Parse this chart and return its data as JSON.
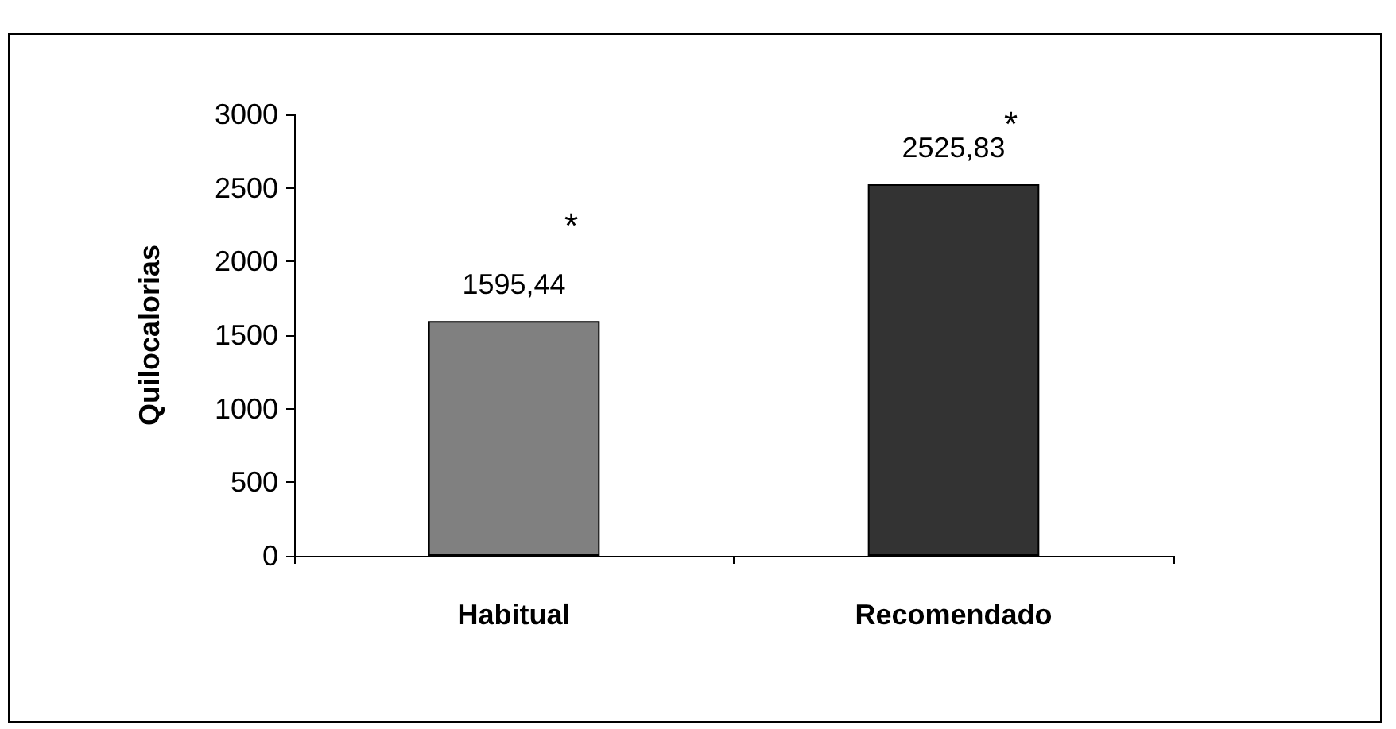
{
  "chart_data": {
    "type": "bar",
    "ylabel": "Quilocalorias",
    "categories": [
      "Habitual",
      "Recomendado"
    ],
    "values": [
      1595.44,
      2525.83
    ],
    "colors": [
      "#808080",
      "#333333"
    ],
    "value_labels": [
      "1595,44",
      "2525,83"
    ],
    "annotations": [
      "*",
      "*"
    ],
    "ylim": [
      0,
      3000
    ],
    "yticks": [
      0,
      500,
      1000,
      1500,
      2000,
      2500,
      3000
    ],
    "grid": false
  }
}
